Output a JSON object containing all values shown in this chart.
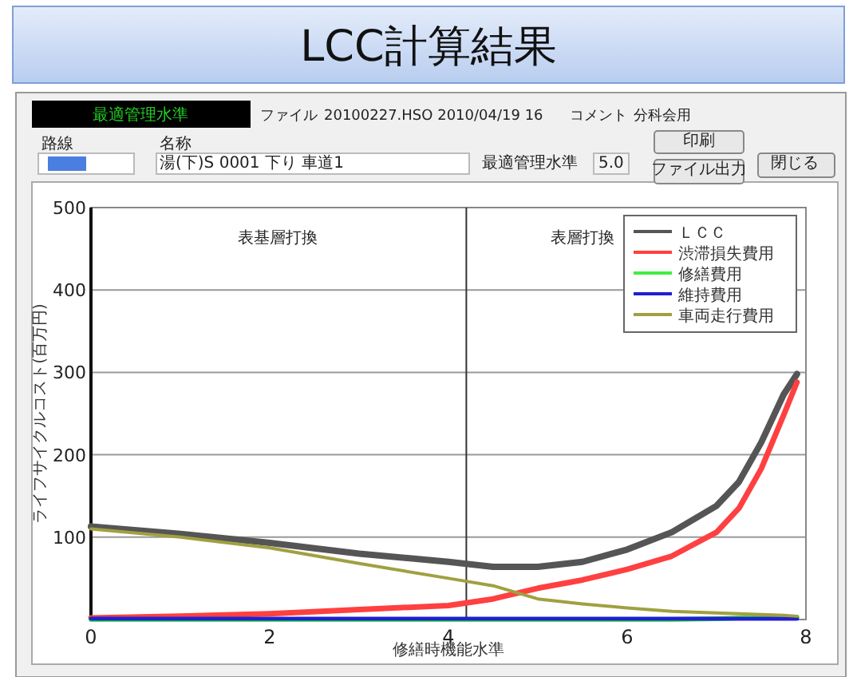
{
  "chart_data": {
    "type": "line",
    "title": "LCC計算結果",
    "xlabel": "修繕時機能水準",
    "ylabel": "ライフサイクルコスト(百万円)",
    "x": [
      0,
      1,
      2,
      3,
      4,
      4.5,
      5,
      5.5,
      6,
      6.5,
      7,
      7.25,
      7.5,
      7.75,
      7.9
    ],
    "series": [
      {
        "name": "ＬＣＣ",
        "color": "#555555",
        "values": [
          113,
          104,
          93,
          80,
          70,
          64,
          64,
          70,
          85,
          106,
          138,
          167,
          215,
          273,
          298
        ]
      },
      {
        "name": "渋滞損失費用",
        "color": "#ff4040",
        "values": [
          2,
          4,
          7,
          12,
          17,
          25,
          38,
          48,
          61,
          77,
          106,
          135,
          183,
          248,
          288
        ]
      },
      {
        "name": "修繕費用",
        "color": "#40ee40",
        "values": [
          0,
          0,
          0,
          0,
          0,
          0,
          0,
          0,
          0,
          0,
          1,
          2,
          2,
          3,
          3
        ]
      },
      {
        "name": "維持費用",
        "color": "#2020d0",
        "values": [
          1,
          1,
          1,
          1,
          1,
          1,
          1,
          1,
          1,
          1,
          1,
          1,
          1,
          1,
          1
        ]
      },
      {
        "name": "車両走行費用",
        "color": "#a0a040",
        "values": [
          110,
          100,
          87,
          68,
          50,
          41,
          25,
          19,
          14,
          10,
          8,
          7,
          6,
          5,
          4
        ]
      }
    ],
    "xlim": [
      0,
      8
    ],
    "ylim": [
      0,
      500
    ],
    "xticks": [
      0,
      2,
      4,
      6,
      8
    ],
    "yticks": [
      100,
      200,
      300,
      400,
      500
    ],
    "grid": "y",
    "legend": "top right",
    "ref_lines": [
      {
        "axis": "x",
        "value": 4.2,
        "color": "#333333"
      }
    ],
    "annotations": [
      "表基層打換",
      "表層打換",
      "最適管理水準",
      "ファイル",
      "20100227.HSO  2010/04/19 16",
      "コメント",
      "分科会用",
      "路線",
      "名称",
      "湯(下)S 0001    下り 車道1",
      "最適管理水準",
      "5.0",
      "印刷",
      "ファイル出力",
      "閉じる"
    ]
  }
}
